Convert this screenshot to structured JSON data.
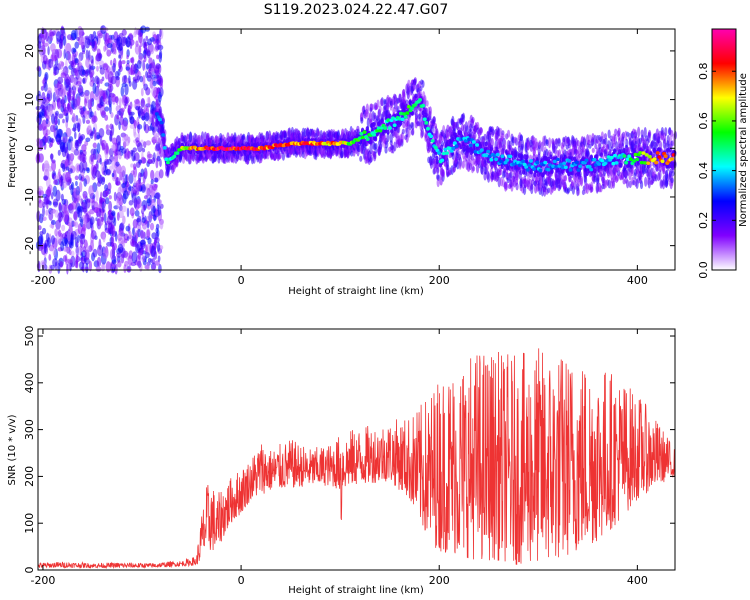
{
  "title": "S119.2023.024.22.47.G07",
  "chart_data": [
    {
      "type": "heatmap",
      "xlabel": "Height of straight line (km)",
      "ylabel": "Frequency (Hz)",
      "xlim": [
        -205,
        438
      ],
      "ylim": [
        -25,
        24.5
      ],
      "xticks": [
        -200,
        0,
        200,
        400
      ],
      "yticks": [
        -20,
        -10,
        0,
        10,
        20
      ],
      "colorbar": {
        "label": "Normalized spectral amplitude",
        "range": [
          0,
          0.97
        ],
        "ticks": [
          0.0,
          0.2,
          0.4,
          0.6,
          0.8
        ],
        "colormap": [
          "#ffffff",
          "#8000ff",
          "#0000ff",
          "#00ffff",
          "#00ff00",
          "#ffff00",
          "#ff0000",
          "#ff00b0"
        ]
      },
      "ridge": {
        "x": [
          -90,
          -80,
          -75,
          -70,
          -60,
          -40,
          -20,
          0,
          20,
          50,
          80,
          100,
          110,
          120,
          130,
          140,
          150,
          160,
          170,
          180,
          185,
          190,
          200,
          210,
          220,
          240,
          260,
          280,
          300,
          320,
          340,
          360,
          380,
          400,
          420,
          438
        ],
        "y": [
          9,
          5,
          -3,
          -2,
          0,
          0,
          0,
          0,
          0,
          1,
          1,
          1,
          1,
          2,
          3,
          4,
          5,
          6,
          8,
          10,
          7,
          3,
          -2,
          0,
          2,
          0,
          -2,
          -3,
          -4,
          -3,
          -4,
          -3,
          -2,
          -2,
          -2,
          -2
        ],
        "peak_amplitude": [
          0.3,
          0.4,
          0.5,
          0.5,
          0.7,
          0.9,
          0.95,
          0.97,
          0.9,
          0.9,
          0.85,
          0.8,
          0.65,
          0.6,
          0.55,
          0.55,
          0.5,
          0.5,
          0.6,
          0.6,
          0.5,
          0.5,
          0.45,
          0.45,
          0.4,
          0.4,
          0.4,
          0.4,
          0.4,
          0.4,
          0.4,
          0.4,
          0.45,
          0.6,
          0.85,
          0.9
        ]
      },
      "noise_region_x": [
        -205,
        -80
      ]
    },
    {
      "type": "line",
      "xlabel": "Height of straight line (km)",
      "ylabel": "SNR (10 * v/v)",
      "xlim": [
        -205,
        438
      ],
      "ylim": [
        0,
        515
      ],
      "xticks": [
        -200,
        0,
        200,
        400
      ],
      "yticks": [
        0,
        100,
        200,
        300,
        400,
        500
      ],
      "color": "#ee3333",
      "series": [
        {
          "x": [
            -205,
            -180,
            -150,
            -120,
            -90,
            -60,
            -45,
            -40,
            -35,
            -30,
            -25,
            -20,
            -10,
            0,
            10,
            20,
            30,
            50,
            70,
            90,
            100,
            101,
            102,
            110,
            130,
            150,
            170,
            180,
            190,
            200,
            220,
            240,
            260,
            280,
            300,
            320,
            340,
            360,
            380,
            400,
            420,
            438
          ],
          "y_low": [
            5,
            5,
            5,
            5,
            5,
            8,
            10,
            20,
            40,
            40,
            40,
            60,
            100,
            120,
            150,
            160,
            170,
            175,
            180,
            180,
            170,
            40,
            170,
            180,
            185,
            190,
            150,
            100,
            60,
            40,
            30,
            20,
            20,
            10,
            15,
            20,
            40,
            60,
            100,
            150,
            180,
            200
          ],
          "y_high": [
            15,
            18,
            15,
            16,
            15,
            20,
            30,
            120,
            180,
            200,
            150,
            180,
            200,
            220,
            240,
            280,
            260,
            280,
            260,
            270,
            290,
            390,
            290,
            300,
            310,
            320,
            330,
            350,
            380,
            420,
            450,
            480,
            470,
            460,
            480,
            470,
            460,
            450,
            420,
            380,
            320,
            260
          ]
        }
      ]
    }
  ]
}
